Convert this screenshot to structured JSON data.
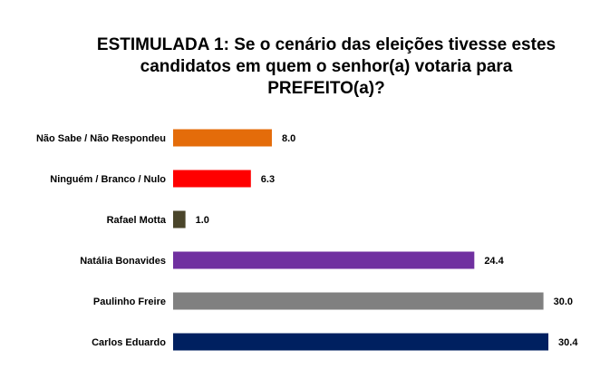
{
  "chart_data": {
    "type": "bar",
    "orientation": "horizontal",
    "title_lines": [
      "ESTIMULADA 1: Se o cenário das eleições tivesse estes",
      "candidatos em quem o senhor(a) votaria para",
      "PREFEITO(a)?"
    ],
    "categories": [
      "Não Sabe / Não Respondeu",
      "Ninguém / Branco / Nulo",
      "Rafael Motta",
      "Natália Bonavides",
      "Paulinho Freire",
      "Carlos Eduardo"
    ],
    "values": [
      8.0,
      6.3,
      1.0,
      24.4,
      30.0,
      30.4
    ],
    "value_labels": [
      "8.0",
      "6.3",
      "1.0",
      "24.4",
      "30.0",
      "30.4"
    ],
    "colors": [
      "#E46C0A",
      "#FF0000",
      "#4A452A",
      "#7030A0",
      "#808080",
      "#002060"
    ],
    "xlim": [
      0,
      31
    ],
    "grid": false,
    "legend": "none"
  }
}
